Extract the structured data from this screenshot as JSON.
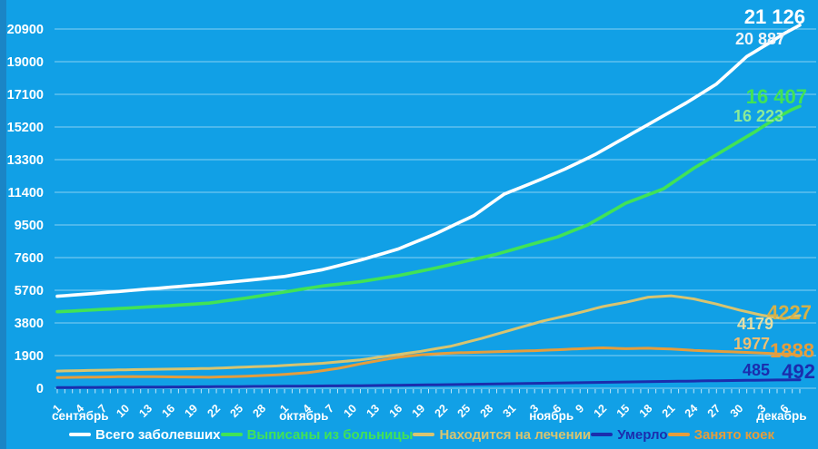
{
  "chart_data": {
    "type": "line",
    "title": "",
    "grid": true,
    "legend_position": "bottom",
    "x_axis": {
      "months": [
        {
          "name": "сентябрь",
          "days": 30
        },
        {
          "name": "октябрь",
          "days": 31
        },
        {
          "name": "ноябрь",
          "days": 30
        },
        {
          "name": "декабрь",
          "days": 8
        }
      ],
      "tick_label_every": 3
    },
    "y_axis": {
      "ticks": [
        0,
        1900,
        3800,
        5700,
        7600,
        9500,
        11400,
        13300,
        15200,
        17100,
        19000,
        20900
      ],
      "max": 20900
    },
    "series": [
      {
        "name": "Всего заболевших",
        "color": "#ffffff",
        "prev_label": {
          "text": "20 887",
          "color": "#eef5fa"
        },
        "last_label": {
          "text": "21 126",
          "color": "#ffffff"
        },
        "values": [
          5350,
          5384,
          5418,
          5452,
          5486,
          5520,
          5556,
          5592,
          5628,
          5664,
          5700,
          5736,
          5772,
          5808,
          5844,
          5880,
          5916,
          5952,
          5988,
          6024,
          6060,
          6102,
          6144,
          6186,
          6228,
          6270,
          6316,
          6362,
          6408,
          6454,
          6500,
          6580,
          6660,
          6740,
          6820,
          6900,
          7010,
          7120,
          7230,
          7340,
          7450,
          7580,
          7710,
          7840,
          7970,
          8100,
          8280,
          8460,
          8640,
          8820,
          9000,
          9210,
          9420,
          9630,
          9840,
          10050,
          10362,
          10675,
          10987,
          11300,
          11475,
          11650,
          11825,
          12000,
          12187,
          12375,
          12562,
          12750,
          12962,
          13175,
          13387,
          13600,
          13850,
          14100,
          14350,
          14600,
          14850,
          15100,
          15350,
          15600,
          15850,
          16100,
          16350,
          16600,
          16875,
          17150,
          17425,
          17700,
          18100,
          18500,
          18900,
          19300,
          19567,
          19833,
          20100,
          20375,
          20650,
          20887,
          21126
        ]
      },
      {
        "name": "Выписаны из больницы",
        "color": "#41e356",
        "prev_label": {
          "text": "16 223",
          "color": "#8bec97"
        },
        "last_label": {
          "text": "16 407",
          "color": "#41e356"
        },
        "values": [
          4450,
          4472,
          4494,
          4516,
          4538,
          4560,
          4584,
          4608,
          4632,
          4656,
          4680,
          4706,
          4732,
          4758,
          4784,
          4810,
          4838,
          4866,
          4894,
          4922,
          4950,
          5010,
          5070,
          5130,
          5190,
          5250,
          5320,
          5390,
          5460,
          5530,
          5600,
          5670,
          5740,
          5810,
          5880,
          5950,
          6000,
          6050,
          6100,
          6150,
          6200,
          6270,
          6340,
          6410,
          6480,
          6550,
          6640,
          6730,
          6820,
          6910,
          7000,
          7100,
          7200,
          7300,
          7400,
          7500,
          7600,
          7700,
          7800,
          7925,
          8050,
          8175,
          8300,
          8425,
          8550,
          8675,
          8800,
          8975,
          9150,
          9325,
          9500,
          9752,
          10004,
          10256,
          10508,
          10760,
          10928,
          11096,
          11264,
          11432,
          11600,
          11900,
          12200,
          12500,
          12800,
          13062,
          13325,
          13587,
          13850,
          14112,
          14375,
          14637,
          14900,
          15183,
          15466,
          15750,
          15986,
          16223,
          16407
        ]
      },
      {
        "name": "Находится на лечении",
        "color": "#d8c470",
        "prev_label": {
          "text": "4179",
          "color": "#e5dfa6"
        },
        "last_label": {
          "text": "4227",
          "color": "#d4b14a"
        },
        "values": [
          1000,
          1008,
          1016,
          1024,
          1032,
          1040,
          1048,
          1056,
          1064,
          1072,
          1080,
          1087,
          1094,
          1101,
          1108,
          1115,
          1122,
          1129,
          1136,
          1143,
          1150,
          1167,
          1183,
          1200,
          1217,
          1233,
          1250,
          1267,
          1283,
          1300,
          1325,
          1350,
          1375,
          1400,
          1425,
          1450,
          1490,
          1530,
          1570,
          1610,
          1650,
          1712,
          1775,
          1837,
          1900,
          1962,
          2025,
          2087,
          2150,
          2225,
          2300,
          2375,
          2450,
          2562,
          2675,
          2787,
          2900,
          3025,
          3150,
          3275,
          3400,
          3525,
          3650,
          3775,
          3900,
          4000,
          4100,
          4200,
          4300,
          4412,
          4525,
          4637,
          4750,
          4833,
          4916,
          5000,
          5100,
          5200,
          5300,
          5327,
          5353,
          5380,
          5320,
          5260,
          5200,
          5100,
          5000,
          4900,
          4783,
          4666,
          4550,
          4450,
          4350,
          4250,
          4175,
          4100,
          4050,
          4179,
          4227
        ]
      },
      {
        "name": "Умерло",
        "color": "#1b2dad",
        "prev_label": {
          "text": "485",
          "color": "#1b2dad"
        },
        "last_label": {
          "text": "492",
          "color": "#1b2dad"
        },
        "values": [
          40,
          42,
          44,
          46,
          48,
          50,
          52,
          54,
          56,
          58,
          60,
          62,
          65,
          67,
          70,
          72,
          75,
          77,
          80,
          82,
          85,
          88,
          91,
          94,
          97,
          100,
          103,
          106,
          109,
          112,
          115,
          118,
          122,
          125,
          129,
          132,
          136,
          139,
          143,
          146,
          150,
          155,
          160,
          165,
          170,
          175,
          180,
          185,
          190,
          195,
          200,
          206,
          213,
          219,
          226,
          232,
          239,
          245,
          252,
          258,
          265,
          271,
          278,
          284,
          291,
          297,
          304,
          310,
          317,
          323,
          330,
          336,
          343,
          349,
          356,
          362,
          369,
          375,
          382,
          388,
          395,
          401,
          407,
          413,
          419,
          425,
          431,
          437,
          443,
          449,
          455,
          460,
          464,
          469,
          473,
          478,
          481,
          485,
          492
        ]
      },
      {
        "name": "Занято коек",
        "color": "#e59d3c",
        "prev_label": {
          "text": "1977",
          "color": "#efbe71"
        },
        "last_label": {
          "text": "1888",
          "color": "#e59d3c"
        },
        "values": [
          620,
          626,
          632,
          638,
          644,
          650,
          656,
          662,
          668,
          674,
          680,
          676,
          672,
          668,
          664,
          660,
          656,
          652,
          648,
          644,
          640,
          652,
          664,
          676,
          688,
          700,
          720,
          740,
          760,
          780,
          810,
          840,
          870,
          900,
          962,
          1025,
          1087,
          1150,
          1237,
          1325,
          1412,
          1500,
          1575,
          1650,
          1725,
          1800,
          1850,
          1900,
          1950,
          1975,
          2000,
          2025,
          2050,
          2062,
          2075,
          2087,
          2100,
          2112,
          2125,
          2137,
          2150,
          2162,
          2175,
          2187,
          2200,
          2220,
          2240,
          2260,
          2280,
          2297,
          2315,
          2332,
          2350,
          2333,
          2316,
          2300,
          2310,
          2320,
          2330,
          2313,
          2296,
          2280,
          2253,
          2226,
          2200,
          2183,
          2166,
          2150,
          2133,
          2116,
          2100,
          2083,
          2066,
          2050,
          2025,
          2000,
          1988,
          1977,
          1888
        ]
      }
    ]
  }
}
